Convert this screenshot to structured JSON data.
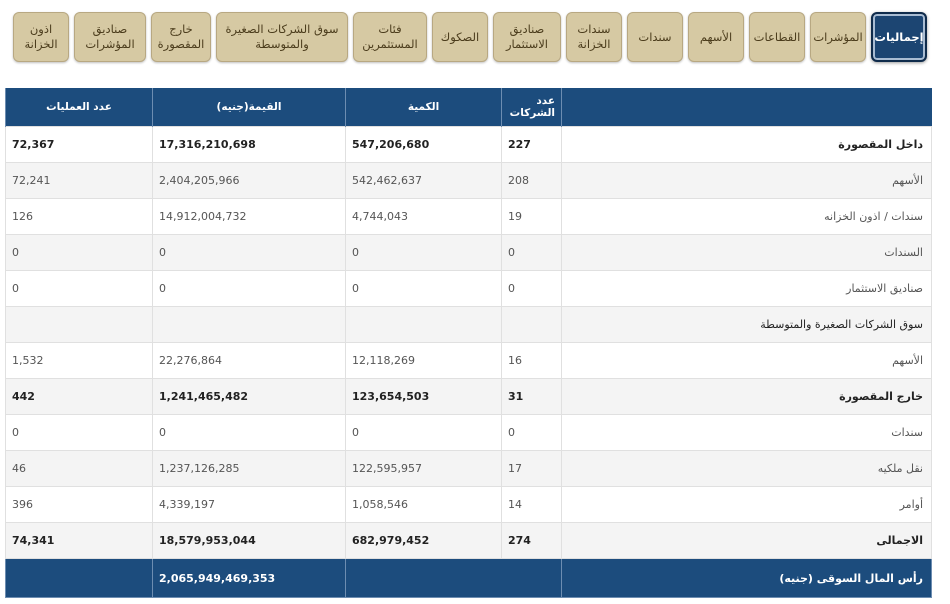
{
  "tabs": [
    {
      "label": "إجماليات",
      "active": true
    },
    {
      "label": "المؤشرات"
    },
    {
      "label": "القطاعات"
    },
    {
      "label": "الأسهم"
    },
    {
      "label": "سندات"
    },
    {
      "label": "سندات\nالخزانة"
    },
    {
      "label": "صناديق\nالاستثمار"
    },
    {
      "label": "الصكوك"
    },
    {
      "label": "فئات\nالمستثمرين"
    },
    {
      "label": "سوق الشركات الصغيرة\nوالمتوسطة"
    },
    {
      "label": "خارج\nالمقصورة"
    },
    {
      "label": "صناديق\nالمؤشرات"
    },
    {
      "label": "اذون\nالخزانة"
    }
  ],
  "table": {
    "headers": {
      "companies": "عدد الشركات",
      "quantity": "الكمية",
      "value": "القيمة(جنيه)",
      "trades": "عدد العمليات"
    },
    "rows": [
      {
        "label": "داخل المقصورة",
        "companies": "227",
        "quantity": "547,206,680",
        "value": "17,316,210,698",
        "trades": "72,367"
      },
      {
        "label": "الأسهم",
        "companies": "208",
        "quantity": "542,462,637",
        "value": "2,404,205,966",
        "trades": "72,241"
      },
      {
        "label": "سندات / اذون الخزانه",
        "companies": "19",
        "quantity": "4,744,043",
        "value": "14,912,004,732",
        "trades": "126"
      },
      {
        "label": "السندات",
        "companies": "0",
        "quantity": "0",
        "value": "0",
        "trades": "0"
      },
      {
        "label": "صناديق الاستثمار",
        "companies": "0",
        "quantity": "0",
        "value": "0",
        "trades": "0"
      },
      {
        "label": "سوق الشركات الصغيرة والمتوسطة",
        "companies": "",
        "quantity": "",
        "value": "",
        "trades": ""
      },
      {
        "label": "الأسهم",
        "companies": "16",
        "quantity": "12,118,269",
        "value": "22,276,864",
        "trades": "1,532"
      },
      {
        "label": "خارج المقصورة",
        "companies": "31",
        "quantity": "123,654,503",
        "value": "1,241,465,482",
        "trades": "442"
      },
      {
        "label": "سندات",
        "companies": "0",
        "quantity": "0",
        "value": "0",
        "trades": "0"
      },
      {
        "label": "نقل ملكيه",
        "companies": "17",
        "quantity": "122,595,957",
        "value": "1,237,126,285",
        "trades": "46"
      },
      {
        "label": "أوامر",
        "companies": "14",
        "quantity": "1,058,546",
        "value": "4,339,197",
        "trades": "396"
      },
      {
        "label": "الاجمالى",
        "companies": "274",
        "quantity": "682,979,452",
        "value": "18,579,953,044",
        "trades": "74,341"
      }
    ],
    "footer": {
      "label": "رأس المال السوقى (جنيه)",
      "value": "2,065,949,469,353"
    }
  }
}
